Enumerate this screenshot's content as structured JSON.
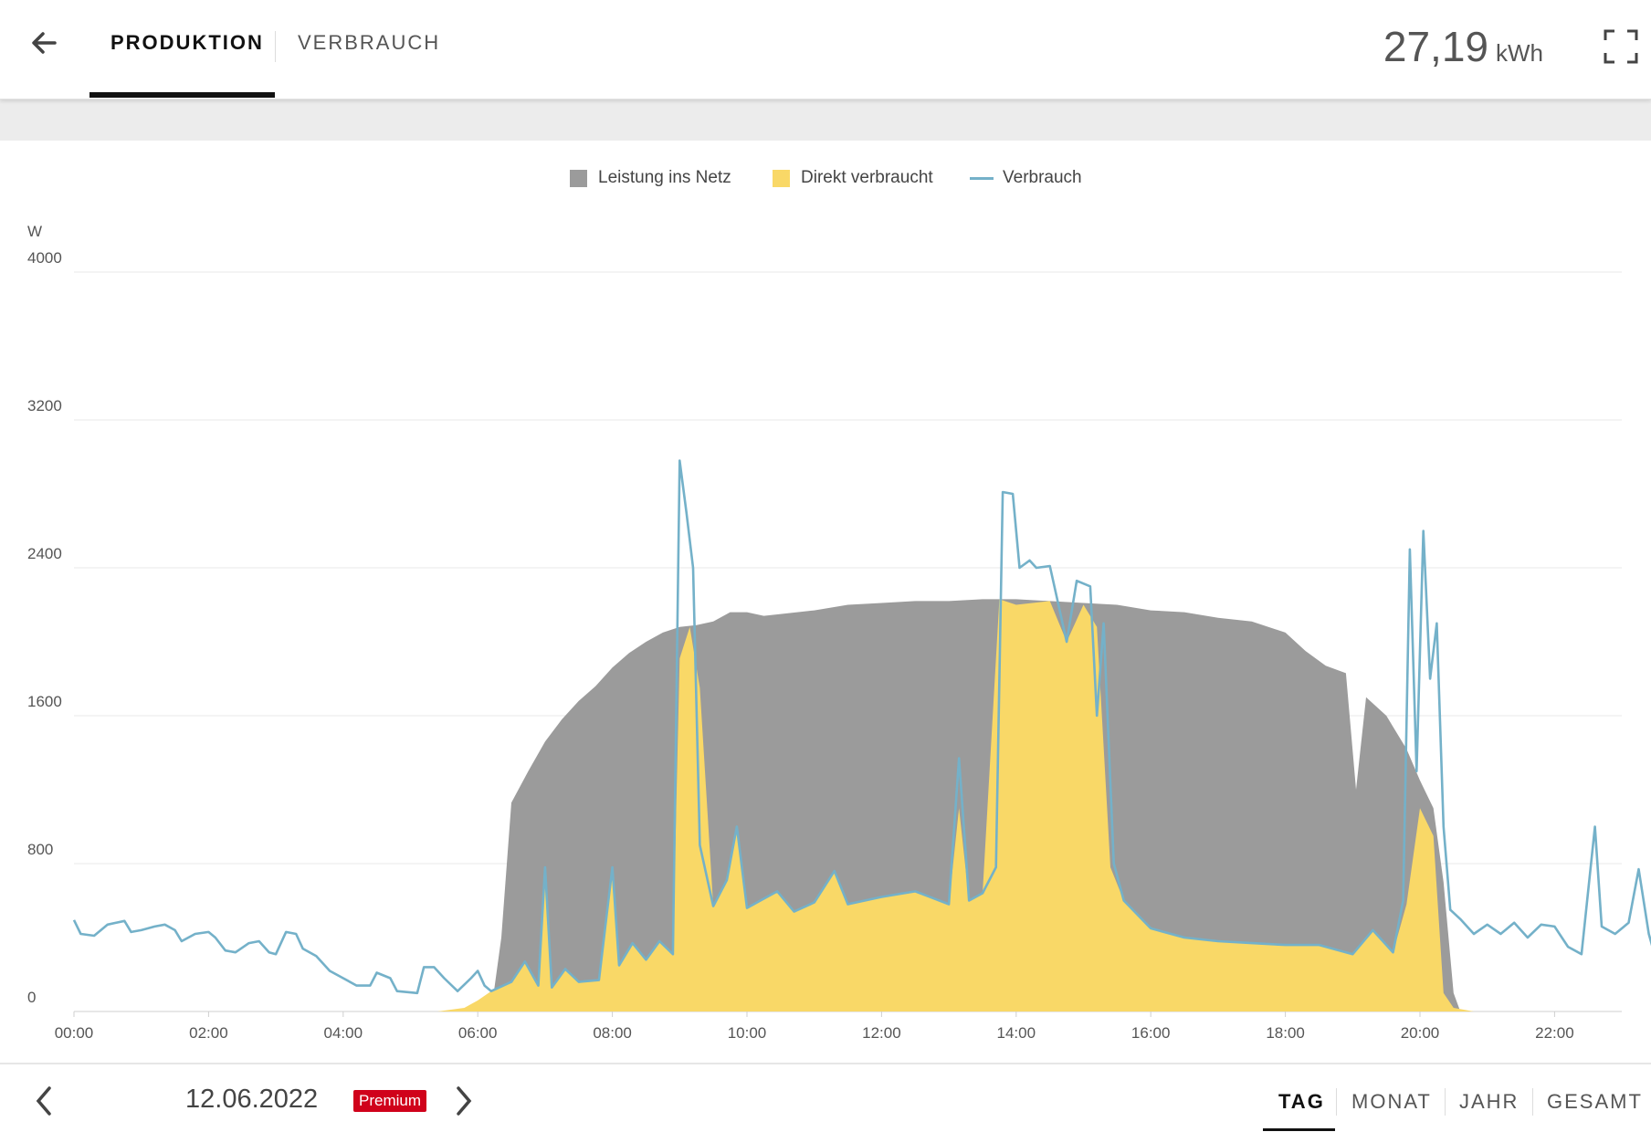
{
  "header": {
    "tabs": [
      {
        "label": "PRODUKTION",
        "active": true
      },
      {
        "label": "VERBRAUCH",
        "active": false
      }
    ],
    "total_value": "27,19",
    "total_unit": "kWh",
    "back_icon": "arrow-left-icon",
    "fullscreen_icon": "fullscreen-icon"
  },
  "legend": [
    {
      "label": "Leistung ins Netz",
      "color": "#9b9b9b",
      "kind": "area"
    },
    {
      "label": "Direkt verbraucht",
      "color": "#f9d867",
      "kind": "area"
    },
    {
      "label": "Verbrauch",
      "color": "#74b1c9",
      "kind": "line"
    }
  ],
  "footer": {
    "date": "12.06.2022",
    "badge": "Premium",
    "periods": [
      {
        "label": "TAG",
        "active": true
      },
      {
        "label": "MONAT",
        "active": false
      },
      {
        "label": "JAHR",
        "active": false
      },
      {
        "label": "GESAMT",
        "active": false
      }
    ]
  },
  "chart_data": {
    "type": "area",
    "ylabel": "W",
    "ylim": [
      0,
      4000
    ],
    "yticks": [
      "0",
      "800",
      "1600",
      "2400",
      "3200",
      "4000"
    ],
    "xticks": [
      "00:00",
      "02:00",
      "04:00",
      "06:00",
      "08:00",
      "10:00",
      "12:00",
      "14:00",
      "16:00",
      "18:00",
      "20:00",
      "22:00"
    ],
    "x_unit": "hour",
    "legend_position": "top-center",
    "grid": true,
    "series": [
      {
        "name": "Leistung ins Netz",
        "color": "#9b9b9b",
        "points": [
          [
            6.2,
            0
          ],
          [
            6.35,
            400
          ],
          [
            6.5,
            1130
          ],
          [
            6.75,
            1300
          ],
          [
            7.0,
            1460
          ],
          [
            7.25,
            1580
          ],
          [
            7.5,
            1680
          ],
          [
            7.75,
            1760
          ],
          [
            8.0,
            1860
          ],
          [
            8.25,
            1940
          ],
          [
            8.5,
            2000
          ],
          [
            8.75,
            2050
          ],
          [
            9.0,
            2080
          ],
          [
            9.25,
            2090
          ],
          [
            9.5,
            2110
          ],
          [
            9.75,
            2160
          ],
          [
            10.0,
            2160
          ],
          [
            10.25,
            2140
          ],
          [
            10.5,
            2150
          ],
          [
            11.0,
            2170
          ],
          [
            11.5,
            2200
          ],
          [
            12.0,
            2210
          ],
          [
            12.5,
            2220
          ],
          [
            13.0,
            2220
          ],
          [
            13.5,
            2230
          ],
          [
            14.0,
            2230
          ],
          [
            14.5,
            2220
          ],
          [
            15.0,
            2210
          ],
          [
            15.5,
            2200
          ],
          [
            16.0,
            2170
          ],
          [
            16.5,
            2160
          ],
          [
            17.0,
            2130
          ],
          [
            17.5,
            2110
          ],
          [
            18.0,
            2050
          ],
          [
            18.3,
            1950
          ],
          [
            18.6,
            1870
          ],
          [
            18.9,
            1830
          ],
          [
            19.05,
            1200
          ],
          [
            19.2,
            1700
          ],
          [
            19.5,
            1600
          ],
          [
            19.8,
            1420
          ],
          [
            20.0,
            1250
          ],
          [
            20.2,
            1100
          ],
          [
            20.35,
            700
          ],
          [
            20.5,
            100
          ],
          [
            20.6,
            0
          ]
        ]
      },
      {
        "name": "Direkt verbraucht",
        "color": "#f9d867",
        "points": [
          [
            5.4,
            0
          ],
          [
            5.8,
            20
          ],
          [
            6.0,
            60
          ],
          [
            6.2,
            110
          ],
          [
            6.5,
            160
          ],
          [
            6.7,
            270
          ],
          [
            6.9,
            140
          ],
          [
            7.0,
            780
          ],
          [
            7.1,
            130
          ],
          [
            7.3,
            230
          ],
          [
            7.5,
            160
          ],
          [
            7.8,
            170
          ],
          [
            8.0,
            780
          ],
          [
            8.1,
            250
          ],
          [
            8.3,
            370
          ],
          [
            8.5,
            280
          ],
          [
            8.7,
            380
          ],
          [
            8.9,
            310
          ],
          [
            9.0,
            1910
          ],
          [
            9.15,
            2080
          ],
          [
            9.3,
            1750
          ],
          [
            9.5,
            570
          ],
          [
            9.7,
            710
          ],
          [
            9.85,
            1000
          ],
          [
            10.0,
            560
          ],
          [
            10.2,
            600
          ],
          [
            10.45,
            650
          ],
          [
            10.7,
            540
          ],
          [
            11.0,
            590
          ],
          [
            11.3,
            760
          ],
          [
            11.5,
            580
          ],
          [
            12.0,
            620
          ],
          [
            12.5,
            650
          ],
          [
            13.0,
            580
          ],
          [
            13.15,
            1100
          ],
          [
            13.3,
            600
          ],
          [
            13.5,
            640
          ],
          [
            13.75,
            2230
          ],
          [
            14.0,
            2200
          ],
          [
            14.5,
            2220
          ],
          [
            14.75,
            2000
          ],
          [
            15.0,
            2200
          ],
          [
            15.2,
            2080
          ],
          [
            15.4,
            780
          ],
          [
            15.6,
            600
          ],
          [
            16.0,
            450
          ],
          [
            16.5,
            400
          ],
          [
            17.0,
            380
          ],
          [
            17.5,
            370
          ],
          [
            18.0,
            360
          ],
          [
            18.5,
            360
          ],
          [
            19.0,
            310
          ],
          [
            19.3,
            440
          ],
          [
            19.6,
            320
          ],
          [
            19.8,
            580
          ],
          [
            20.0,
            1100
          ],
          [
            20.2,
            950
          ],
          [
            20.35,
            100
          ],
          [
            20.5,
            20
          ],
          [
            20.8,
            0
          ]
        ]
      },
      {
        "name": "Verbrauch",
        "color": "#74b1c9",
        "points": [
          [
            0.0,
            495
          ],
          [
            0.1,
            420
          ],
          [
            0.3,
            410
          ],
          [
            0.5,
            470
          ],
          [
            0.75,
            490
          ],
          [
            0.85,
            430
          ],
          [
            1.0,
            440
          ],
          [
            1.2,
            460
          ],
          [
            1.35,
            470
          ],
          [
            1.5,
            440
          ],
          [
            1.6,
            380
          ],
          [
            1.8,
            420
          ],
          [
            2.0,
            430
          ],
          [
            2.1,
            400
          ],
          [
            2.25,
            330
          ],
          [
            2.4,
            320
          ],
          [
            2.6,
            370
          ],
          [
            2.75,
            380
          ],
          [
            2.9,
            320
          ],
          [
            3.0,
            310
          ],
          [
            3.15,
            430
          ],
          [
            3.3,
            420
          ],
          [
            3.4,
            340
          ],
          [
            3.6,
            300
          ],
          [
            3.8,
            220
          ],
          [
            4.0,
            180
          ],
          [
            4.2,
            140
          ],
          [
            4.4,
            140
          ],
          [
            4.5,
            210
          ],
          [
            4.7,
            180
          ],
          [
            4.8,
            110
          ],
          [
            5.1,
            100
          ],
          [
            5.2,
            240
          ],
          [
            5.35,
            240
          ],
          [
            5.5,
            180
          ],
          [
            5.7,
            110
          ],
          [
            5.9,
            180
          ],
          [
            6.0,
            220
          ],
          [
            6.1,
            140
          ],
          [
            6.2,
            110
          ],
          [
            6.5,
            160
          ],
          [
            6.7,
            270
          ],
          [
            6.9,
            140
          ],
          [
            7.0,
            780
          ],
          [
            7.1,
            130
          ],
          [
            7.3,
            230
          ],
          [
            7.5,
            160
          ],
          [
            7.8,
            170
          ],
          [
            8.0,
            780
          ],
          [
            8.1,
            250
          ],
          [
            8.3,
            370
          ],
          [
            8.5,
            280
          ],
          [
            8.7,
            380
          ],
          [
            8.9,
            310
          ],
          [
            9.0,
            2980
          ],
          [
            9.1,
            2700
          ],
          [
            9.2,
            2400
          ],
          [
            9.3,
            900
          ],
          [
            9.5,
            570
          ],
          [
            9.7,
            710
          ],
          [
            9.85,
            1000
          ],
          [
            10.0,
            560
          ],
          [
            10.2,
            600
          ],
          [
            10.45,
            650
          ],
          [
            10.7,
            540
          ],
          [
            11.0,
            590
          ],
          [
            11.3,
            760
          ],
          [
            11.5,
            580
          ],
          [
            12.0,
            620
          ],
          [
            12.5,
            650
          ],
          [
            13.0,
            580
          ],
          [
            13.15,
            1370
          ],
          [
            13.3,
            600
          ],
          [
            13.5,
            640
          ],
          [
            13.7,
            780
          ],
          [
            13.8,
            2810
          ],
          [
            13.95,
            2800
          ],
          [
            14.05,
            2400
          ],
          [
            14.2,
            2440
          ],
          [
            14.3,
            2400
          ],
          [
            14.5,
            2410
          ],
          [
            14.75,
            2000
          ],
          [
            14.9,
            2330
          ],
          [
            15.1,
            2300
          ],
          [
            15.2,
            1600
          ],
          [
            15.3,
            2100
          ],
          [
            15.45,
            800
          ],
          [
            15.6,
            600
          ],
          [
            16.0,
            450
          ],
          [
            16.5,
            400
          ],
          [
            17.0,
            380
          ],
          [
            17.5,
            370
          ],
          [
            18.0,
            360
          ],
          [
            18.5,
            360
          ],
          [
            19.0,
            310
          ],
          [
            19.3,
            440
          ],
          [
            19.6,
            320
          ],
          [
            19.75,
            600
          ],
          [
            19.85,
            2500
          ],
          [
            19.95,
            1300
          ],
          [
            20.05,
            2600
          ],
          [
            20.15,
            1800
          ],
          [
            20.25,
            2100
          ],
          [
            20.35,
            1000
          ],
          [
            20.45,
            550
          ],
          [
            20.6,
            500
          ],
          [
            20.8,
            420
          ],
          [
            21.0,
            470
          ],
          [
            21.2,
            420
          ],
          [
            21.4,
            480
          ],
          [
            21.6,
            400
          ],
          [
            21.8,
            470
          ],
          [
            22.0,
            460
          ],
          [
            22.2,
            350
          ],
          [
            22.4,
            310
          ],
          [
            22.6,
            1000
          ],
          [
            22.7,
            460
          ],
          [
            22.9,
            420
          ],
          [
            23.1,
            480
          ],
          [
            23.25,
            770
          ],
          [
            23.4,
            420
          ],
          [
            23.5,
            290
          ]
        ]
      }
    ]
  }
}
